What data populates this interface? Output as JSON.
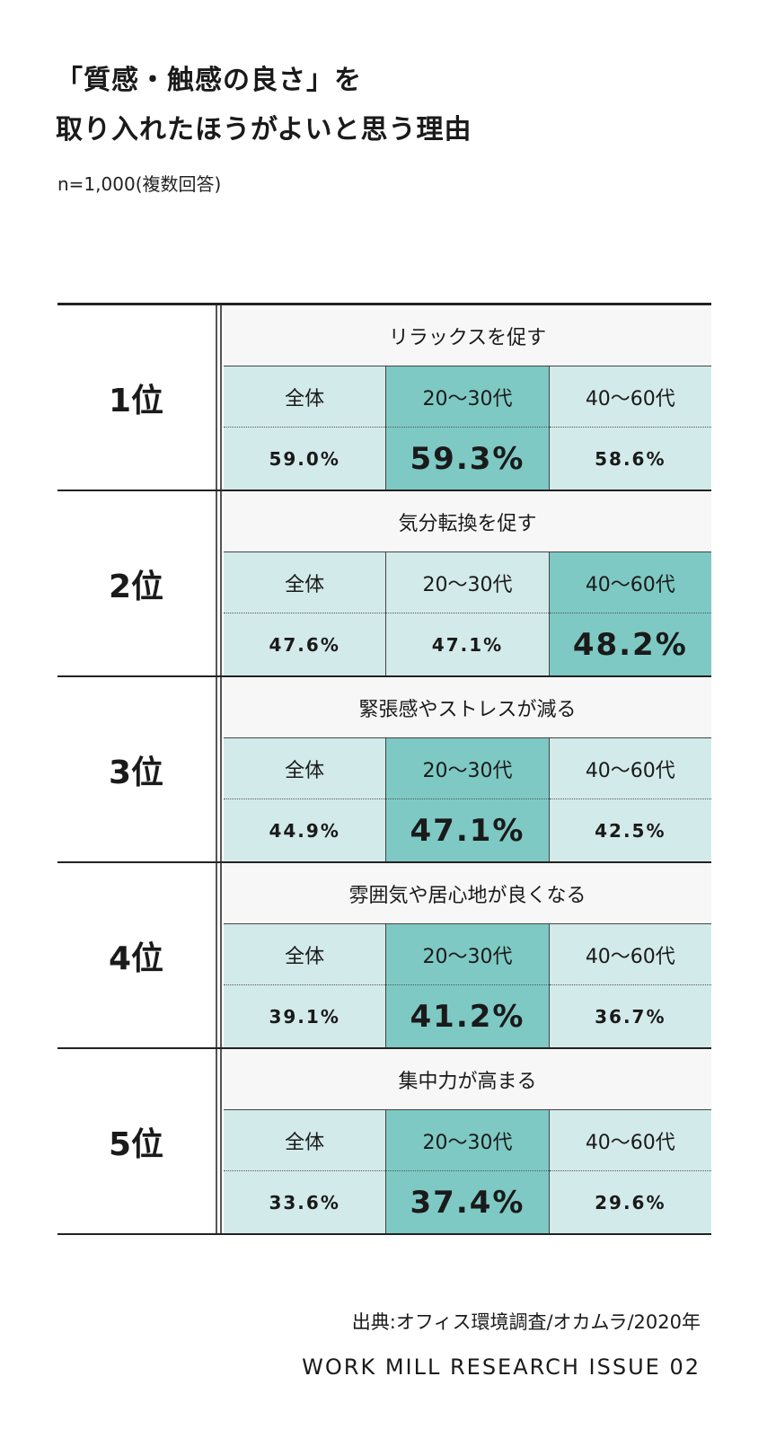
{
  "header": {
    "title_line1": "「質感・触感の良さ」を",
    "title_line2": "取り入れたほうがよいと思う理由",
    "subtitle": "n=1,000(複数回答)"
  },
  "chart_data": {
    "type": "table",
    "columns": [
      "全体",
      "20〜30代",
      "40〜60代"
    ],
    "rows": [
      {
        "rank": "1位",
        "reason": "リラックスを促す",
        "values": [
          "59.0%",
          "59.3%",
          "58.6%"
        ],
        "highlight": 1
      },
      {
        "rank": "2位",
        "reason": "気分転換を促す",
        "values": [
          "47.6%",
          "47.1%",
          "48.2%"
        ],
        "highlight": 2
      },
      {
        "rank": "3位",
        "reason": "緊張感やストレスが減る",
        "values": [
          "44.9%",
          "47.1%",
          "42.5%"
        ],
        "highlight": 1
      },
      {
        "rank": "4位",
        "reason": "雰囲気や居心地が良くなる",
        "values": [
          "39.1%",
          "41.2%",
          "36.7%"
        ],
        "highlight": 1
      },
      {
        "rank": "5位",
        "reason": "集中力が高まる",
        "values": [
          "33.6%",
          "37.4%",
          "29.6%"
        ],
        "highlight": 1
      }
    ],
    "colors": {
      "cell": "#d3eaea",
      "highlight": "#7ec9c4",
      "reason_bg": "#f7f7f7"
    }
  },
  "footer": {
    "source": "出典:オフィス環境調査/オカムラ/2020年",
    "brand": "WORK MILL RESEARCH ISSUE 02"
  }
}
